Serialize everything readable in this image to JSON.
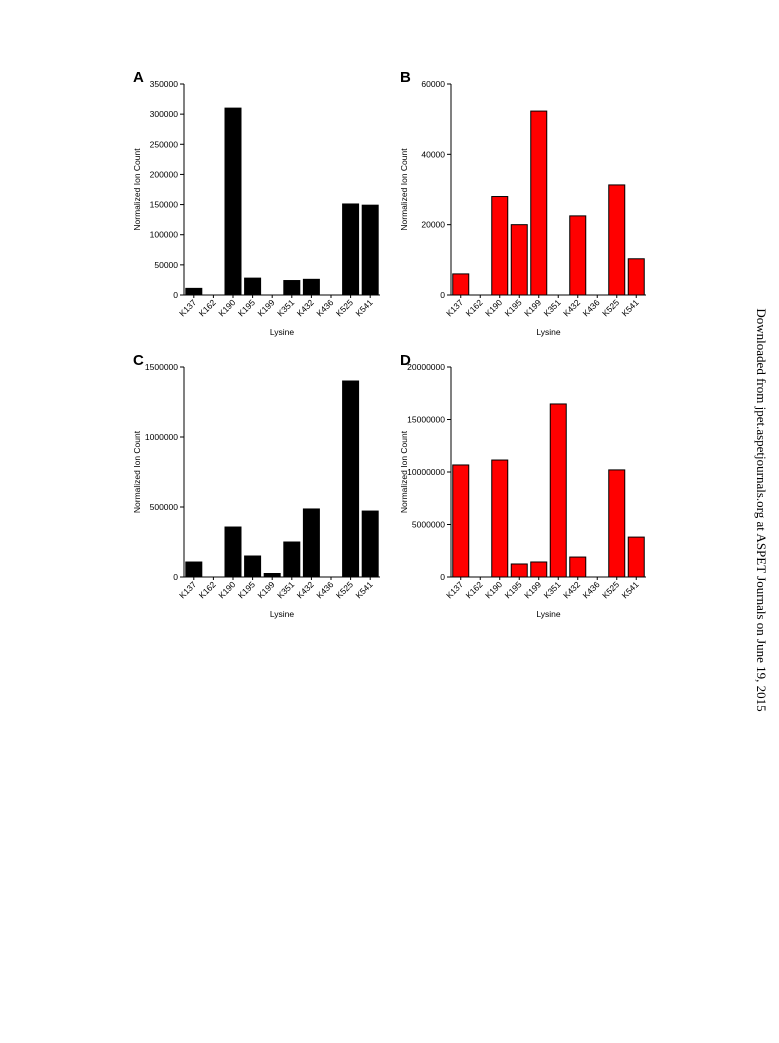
{
  "chart_data": [
    {
      "type": "bar",
      "panel": "A",
      "y_label": "Normalized Ion Count",
      "x_label": "Lysine",
      "categories": [
        "K137",
        "K162",
        "K190",
        "K195",
        "K199",
        "K351",
        "K432",
        "K436",
        "K525",
        "K541"
      ],
      "values": [
        11000,
        0,
        310000,
        28000,
        0,
        24000,
        26000,
        0,
        151000,
        149000
      ],
      "color": "#000000",
      "ylim": [
        0,
        350000
      ],
      "yticks": [
        0,
        50000,
        100000,
        150000,
        200000,
        250000,
        300000,
        350000
      ]
    },
    {
      "type": "bar",
      "panel": "B",
      "y_label": "Normalized Ion Count",
      "x_label": "Lysine",
      "categories": [
        "K137",
        "K162",
        "K190",
        "K195",
        "K199",
        "K351",
        "K432",
        "K436",
        "K525",
        "K541"
      ],
      "values": [
        6000,
        0,
        28000,
        20000,
        52300,
        0,
        22500,
        0,
        31300,
        10300
      ],
      "color": "#ff0000",
      "ylim": [
        0,
        60000
      ],
      "yticks": [
        0,
        20000,
        40000,
        60000
      ]
    },
    {
      "type": "bar",
      "panel": "C",
      "y_label": "Normalized Ion Count",
      "x_label": "Lysine",
      "categories": [
        "K137",
        "K162",
        "K190",
        "K195",
        "K199",
        "K351",
        "K432",
        "K436",
        "K525",
        "K541"
      ],
      "values": [
        107000,
        0,
        357000,
        150000,
        25000,
        250000,
        486000,
        0,
        1400000,
        471000
      ],
      "color": "#000000",
      "ylim": [
        0,
        1500000
      ],
      "yticks": [
        0,
        500000,
        1000000,
        1500000
      ]
    },
    {
      "type": "bar",
      "panel": "D",
      "y_label": "Normalized Ion Count",
      "x_label": "Lysine",
      "categories": [
        "K137",
        "K162",
        "K190",
        "K195",
        "K199",
        "K351",
        "K432",
        "K436",
        "K525",
        "K541"
      ],
      "values": [
        10670000,
        0,
        11140000,
        1240000,
        1430000,
        16480000,
        1900000,
        0,
        10200000,
        3800000
      ],
      "color": "#ff0000",
      "ylim": [
        0,
        20000000
      ],
      "yticks": [
        0,
        5000000,
        10000000,
        15000000,
        20000000
      ]
    }
  ],
  "watermark": "Downloaded from jpet.aspetjournals.org at ASPET Journals on June 19, 2015"
}
